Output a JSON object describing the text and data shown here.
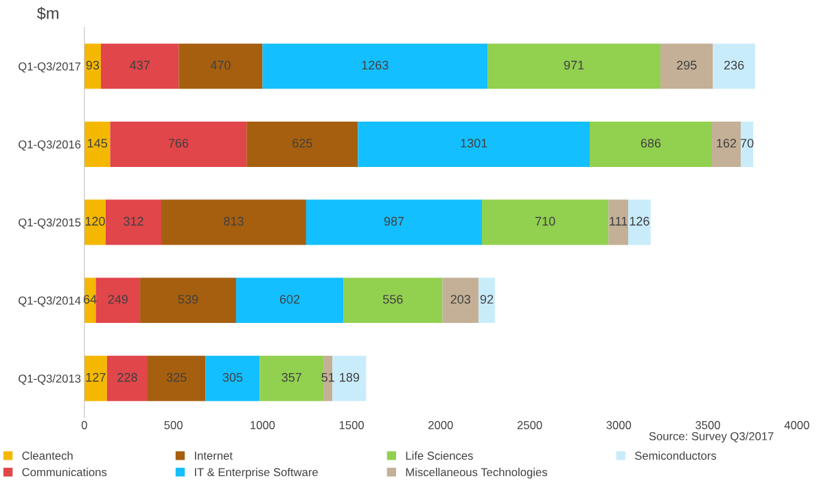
{
  "chart_data": {
    "type": "bar",
    "orientation": "horizontal",
    "stacked": true,
    "data_labels": true,
    "categories": [
      "Q1-Q3/2017",
      "Q1-Q3/2016",
      "Q1-Q3/2015",
      "Q1-Q3/2014",
      "Q1-Q3/2013"
    ],
    "series": [
      {
        "name": "Cleantech",
        "color": "#f5b800",
        "values": [
          93,
          145,
          120,
          64,
          127
        ]
      },
      {
        "name": "Communications",
        "color": "#e0464a",
        "values": [
          437,
          766,
          312,
          249,
          228
        ]
      },
      {
        "name": "Internet",
        "color": "#a65f0f",
        "values": [
          470,
          625,
          813,
          539,
          325
        ]
      },
      {
        "name": "IT & Enterprise Software",
        "color": "#14bfff",
        "values": [
          1263,
          1301,
          987,
          602,
          305
        ]
      },
      {
        "name": "Life Sciences",
        "color": "#92d050",
        "values": [
          971,
          686,
          710,
          556,
          357
        ]
      },
      {
        "name": "Miscellaneous Technologies",
        "color": "#c4b096",
        "values": [
          295,
          162,
          111,
          203,
          51
        ]
      },
      {
        "name": "Semiconductors",
        "color": "#c9ecfb",
        "values": [
          236,
          70,
          126,
          92,
          189
        ]
      }
    ],
    "xlim": [
      0,
      4000
    ],
    "xticks": [
      0,
      500,
      1000,
      1500,
      2000,
      2500,
      3000,
      3500,
      4000
    ],
    "grid": false,
    "legend": "bottom",
    "annotations": [
      "$m",
      "Source: Survey Q3/2017"
    ]
  }
}
